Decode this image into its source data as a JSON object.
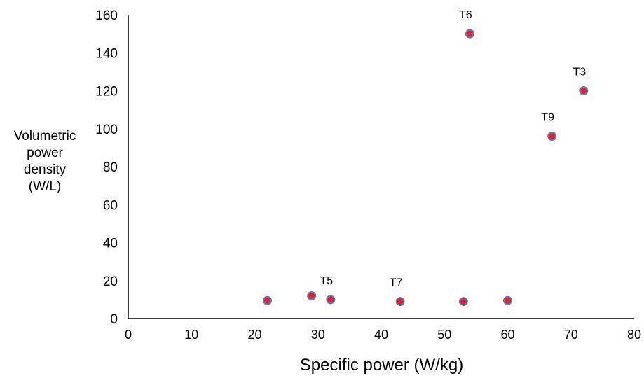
{
  "chart_data": {
    "type": "scatter",
    "title": "",
    "xlabel": "Specific power (W/kg)",
    "ylabel_lines": [
      "Volumetric",
      "power",
      "density",
      "(W/L)"
    ],
    "xlim": [
      0,
      80
    ],
    "ylim": [
      0,
      160
    ],
    "xticks": [
      0,
      10,
      20,
      30,
      40,
      50,
      60,
      70,
      80
    ],
    "yticks": [
      0,
      20,
      40,
      60,
      80,
      100,
      120,
      140,
      160
    ],
    "grid": false,
    "legend": "none",
    "marker_fill": "#e8202a",
    "marker_stroke": "#5b7bbf",
    "points": [
      {
        "x": 22,
        "y": 9.5,
        "label": ""
      },
      {
        "x": 29,
        "y": 12,
        "label": ""
      },
      {
        "x": 32,
        "y": 10,
        "label": "T5"
      },
      {
        "x": 43,
        "y": 9,
        "label": "T7"
      },
      {
        "x": 53,
        "y": 9,
        "label": ""
      },
      {
        "x": 54,
        "y": 150,
        "label": "T6"
      },
      {
        "x": 60,
        "y": 9.5,
        "label": ""
      },
      {
        "x": 67,
        "y": 96,
        "label": "T9"
      },
      {
        "x": 72,
        "y": 120,
        "label": "T3"
      }
    ]
  }
}
